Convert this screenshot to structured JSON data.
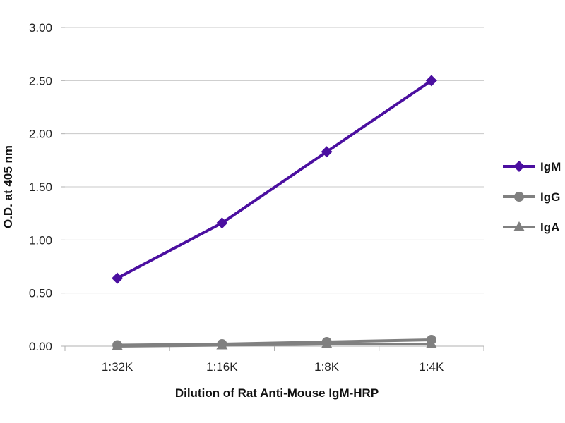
{
  "chart_data": {
    "type": "line",
    "xlabel": "Dilution of Rat Anti-Mouse IgM-HRP",
    "ylabel": "O.D. at 405 nm",
    "categories": [
      "1:32K",
      "1:16K",
      "1:8K",
      "1:4K"
    ],
    "ylim": [
      0,
      3
    ],
    "yticks": [
      "0.00",
      "0.50",
      "1.00",
      "1.50",
      "2.00",
      "2.50",
      "3.00"
    ],
    "grid": true,
    "legend": "right",
    "series": [
      {
        "name": "IgM",
        "values": [
          0.64,
          1.16,
          1.83,
          2.5
        ],
        "color": "#4b0fa0",
        "marker": "diamond"
      },
      {
        "name": "IgG",
        "values": [
          0.01,
          0.02,
          0.04,
          0.06
        ],
        "color": "#808080",
        "marker": "circle"
      },
      {
        "name": "IgA",
        "values": [
          0.0,
          0.01,
          0.02,
          0.02
        ],
        "color": "#808080",
        "marker": "triangle"
      }
    ]
  }
}
